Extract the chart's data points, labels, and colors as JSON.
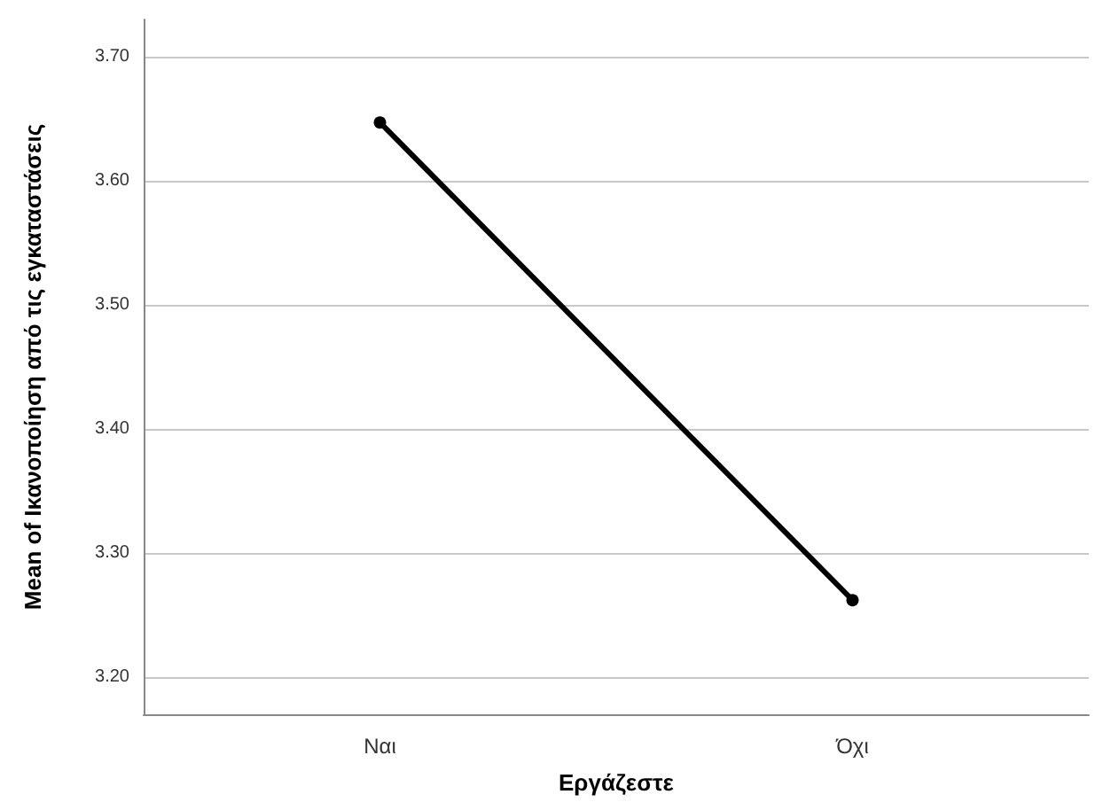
{
  "chart_data": {
    "type": "line",
    "xlabel": "Εργάζεστε",
    "ylabel": "Mean of Ικανοποίηση από τις εγκαταστάσεις",
    "categories": [
      "Ναι",
      "Όχι"
    ],
    "series": [
      {
        "color": "#000000",
        "values": [
          3.647,
          3.262
        ]
      }
    ],
    "ylim": [
      3.17,
      3.73
    ],
    "yticks": [
      {
        "value": 3.2,
        "label": "3.20"
      },
      {
        "value": 3.3,
        "label": "3.30"
      },
      {
        "value": 3.4,
        "label": "3.40"
      },
      {
        "value": 3.5,
        "label": "3.50"
      },
      {
        "value": 3.6,
        "label": "3.60"
      },
      {
        "value": 3.7,
        "label": "3.70"
      }
    ],
    "grid": "y",
    "marker": "circle",
    "line_style": "solid"
  }
}
